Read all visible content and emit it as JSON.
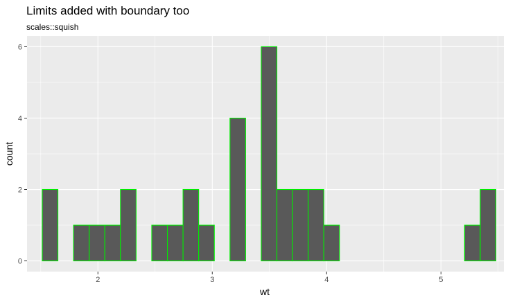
{
  "chart_data": {
    "type": "bar",
    "title": "Limits added with boundary too",
    "subtitle": "scales::squish",
    "xlabel": "wt",
    "ylabel": "count",
    "xlim": [
      1.38,
      5.55
    ],
    "ylim": [
      -0.3,
      6.3
    ],
    "xticks": [
      2,
      3,
      4,
      5
    ],
    "yticks": [
      0,
      2,
      4,
      6
    ],
    "bin_width": 0.1368,
    "bins": [
      {
        "x": 1.5132,
        "count": 2
      },
      {
        "x": 1.65,
        "count": 0
      },
      {
        "x": 1.7868,
        "count": 1
      },
      {
        "x": 1.9236,
        "count": 1
      },
      {
        "x": 2.0604,
        "count": 1
      },
      {
        "x": 2.1972,
        "count": 2
      },
      {
        "x": 2.334,
        "count": 0
      },
      {
        "x": 2.4708,
        "count": 1
      },
      {
        "x": 2.6076,
        "count": 1
      },
      {
        "x": 2.7444,
        "count": 2
      },
      {
        "x": 2.8812,
        "count": 1
      },
      {
        "x": 3.018,
        "count": 0
      },
      {
        "x": 3.1548,
        "count": 4
      },
      {
        "x": 3.2916,
        "count": 0
      },
      {
        "x": 3.4284,
        "count": 6
      },
      {
        "x": 3.5652,
        "count": 2
      },
      {
        "x": 3.702,
        "count": 2
      },
      {
        "x": 3.8388,
        "count": 2
      },
      {
        "x": 3.9756,
        "count": 1
      },
      {
        "x": 4.1124,
        "count": 0
      },
      {
        "x": 4.2492,
        "count": 0
      },
      {
        "x": 4.386,
        "count": 0
      },
      {
        "x": 4.5228,
        "count": 0
      },
      {
        "x": 4.6596,
        "count": 0
      },
      {
        "x": 4.7964,
        "count": 0
      },
      {
        "x": 4.9332,
        "count": 0
      },
      {
        "x": 5.07,
        "count": 0
      },
      {
        "x": 5.2068,
        "count": 1
      },
      {
        "x": 5.3436,
        "count": 2
      }
    ],
    "grid": true,
    "legend": "none",
    "colors": {
      "panel": "#ebebeb",
      "grid": "#ffffff",
      "bar_fill": "#595959",
      "bar_outline": "#00ee00",
      "tick": "#333333",
      "tick_label": "#4d4d4d"
    }
  }
}
